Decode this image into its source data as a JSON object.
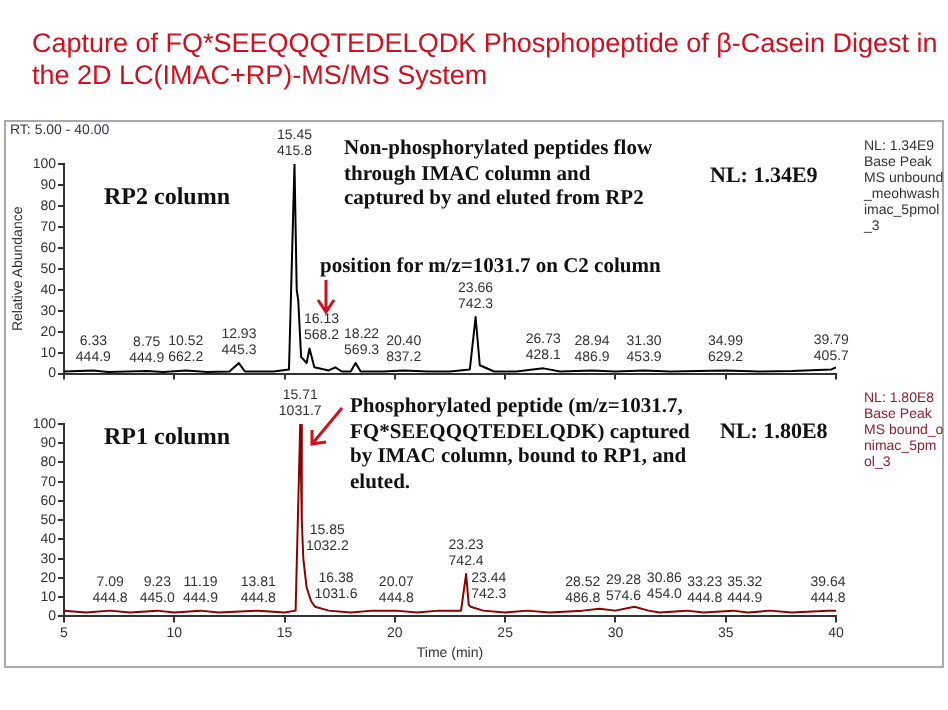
{
  "chart_data": [
    {
      "type": "line",
      "title": "Capture of FQ*SEEQQQTEDELQDK Phosphopeptide of β-Casein Digest in the 2D LC(IMAC+RP)-MS/MS System",
      "ylabel": "Relative Abundance",
      "xlim": [
        5,
        40
      ],
      "ylim": [
        0,
        100
      ],
      "xticks": [
        5,
        10,
        15,
        20,
        25,
        30,
        35,
        40
      ],
      "yticks": [
        0,
        10,
        20,
        30,
        40,
        50,
        60,
        70,
        80,
        90,
        100
      ],
      "tick_labels": "y",
      "series": [
        {
          "color": "#000000",
          "x": [
            5,
            6.33,
            7,
            8.75,
            9.5,
            10.52,
            11.5,
            12.5,
            12.93,
            13.2,
            14.5,
            15.2,
            15.45,
            15.55,
            15.62,
            15.75,
            16.0,
            16.13,
            16.35,
            17,
            17.3,
            17.6,
            18.0,
            18.22,
            18.45,
            19.5,
            20.4,
            21.5,
            22.5,
            23.4,
            23.66,
            23.85,
            24.5,
            25.5,
            26.73,
            27.5,
            28.94,
            30,
            31.3,
            32.5,
            34.99,
            36.5,
            38,
            39.79,
            40
          ],
          "values": [
            1,
            1.5,
            0.8,
            1.2,
            0.8,
            1.5,
            0.8,
            1,
            5,
            1,
            1,
            2,
            100,
            40,
            35,
            8,
            5,
            12,
            3,
            1.5,
            3,
            1,
            1,
            5,
            1,
            1,
            1.5,
            1,
            1,
            2,
            27,
            4,
            1,
            1,
            2.5,
            1,
            1.5,
            1,
            1.5,
            1,
            1.5,
            1,
            1.2,
            2,
            3
          ]
        }
      ],
      "annotations": [
        "RT: 5.00 - 40.00",
        "RP2 column",
        "Non-phosphorylated peptides flow through IMAC column and captured by and eluted from RP2",
        "NL: 1.34E9",
        "position for m/z=1031.7 on C2 column",
        "NL: 1.34E9 Base Peak MS unbound_meohwash imac_5pmol_3",
        {
          "text": "6.33\n444.9",
          "x": 6.33,
          "y": 1.5
        },
        {
          "text": "8.75\n444.9",
          "x": 8.75,
          "y": 1.2
        },
        {
          "text": "10.52\n662.2",
          "x": 10.52,
          "y": 1.5
        },
        {
          "text": "12.93\n445.3",
          "x": 12.93,
          "y": 5
        },
        {
          "text": "15.45\n415.8",
          "x": 15.45,
          "y": 100
        },
        {
          "text": "16.13\n568.2",
          "x": 16.13,
          "y": 12
        },
        {
          "text": "18.22\n569.3",
          "x": 18.22,
          "y": 5
        },
        {
          "text": "20.40\n837.2",
          "x": 20.4,
          "y": 1.5
        },
        {
          "text": "23.66\n742.3",
          "x": 23.66,
          "y": 27
        },
        {
          "text": "26.73\n428.1",
          "x": 26.73,
          "y": 2.5
        },
        {
          "text": "28.94\n486.9",
          "x": 28.94,
          "y": 1.5
        },
        {
          "text": "31.30\n453.9",
          "x": 31.3,
          "y": 1.5
        },
        {
          "text": "34.99\n629.2",
          "x": 34.99,
          "y": 1.5
        },
        {
          "text": "39.79\n405.7",
          "x": 39.79,
          "y": 2
        }
      ]
    },
    {
      "type": "line",
      "xlabel": "Time (min)",
      "xlim": [
        5,
        40
      ],
      "ylim": [
        0,
        100
      ],
      "xticks": [
        5,
        10,
        15,
        20,
        25,
        30,
        35,
        40
      ],
      "yticks": [
        0,
        10,
        20,
        30,
        40,
        50,
        60,
        70,
        80,
        90,
        100
      ],
      "series": [
        {
          "color": "#8b0000",
          "x": [
            5,
            6,
            7.09,
            8,
            9.23,
            10,
            11.19,
            12,
            13.81,
            15,
            15.5,
            15.71,
            15.78,
            15.85,
            16.0,
            16.2,
            16.38,
            17,
            18,
            19,
            20.07,
            21,
            22,
            23,
            23.23,
            23.35,
            23.44,
            24,
            25,
            26,
            27,
            28.52,
            29.28,
            30,
            30.86,
            31.5,
            32,
            33.23,
            34,
            35.32,
            36,
            37,
            38,
            39.64,
            40
          ],
          "values": [
            3,
            2,
            3,
            2,
            3,
            2,
            3,
            2,
            3,
            2,
            3,
            100,
            50,
            30,
            15,
            8,
            5,
            3,
            2,
            3,
            3,
            2,
            3,
            3,
            22,
            6,
            5,
            3,
            2,
            3,
            2,
            3,
            4,
            3,
            5,
            3,
            2,
            3,
            2,
            3,
            2,
            3,
            2,
            3,
            3
          ]
        }
      ],
      "annotations": [
        "RP1 column",
        "Phosphorylated peptide (m/z=1031.7, FQ*SEEQQQTEDELQDK) captured by IMAC column, bound to RP1, and eluted.",
        "NL: 1.80E8",
        "NL: 1.80E8 Base Peak MS bound_onimac_5pmol_3",
        {
          "text": "7.09\n444.8",
          "x": 7.09,
          "y": 3
        },
        {
          "text": "9.23\n445.0",
          "x": 9.23,
          "y": 3
        },
        {
          "text": "11.19\n444.9",
          "x": 11.19,
          "y": 3
        },
        {
          "text": "13.81\n444.8",
          "x": 13.81,
          "y": 3
        },
        {
          "text": "15.71\n1031.7",
          "x": 15.71,
          "y": 100
        },
        {
          "text": "15.85\n1032.2",
          "x": 15.85,
          "y": 30
        },
        {
          "text": "16.38\n1031.6",
          "x": 16.38,
          "y": 5
        },
        {
          "text": "20.07\n444.8",
          "x": 20.07,
          "y": 3
        },
        {
          "text": "23.23\n742.4",
          "x": 23.23,
          "y": 22
        },
        {
          "text": "23.44\n742.3",
          "x": 23.44,
          "y": 5
        },
        {
          "text": "28.52\n486.8",
          "x": 28.52,
          "y": 3
        },
        {
          "text": "29.28\n574.6",
          "x": 29.28,
          "y": 4
        },
        {
          "text": "30.86\n454.0",
          "x": 30.86,
          "y": 5
        },
        {
          "text": "33.23\n444.8",
          "x": 33.23,
          "y": 3
        },
        {
          "text": "35.32\n444.9",
          "x": 35.32,
          "y": 3
        },
        {
          "text": "39.64\n444.8",
          "x": 39.64,
          "y": 3
        }
      ]
    }
  ]
}
